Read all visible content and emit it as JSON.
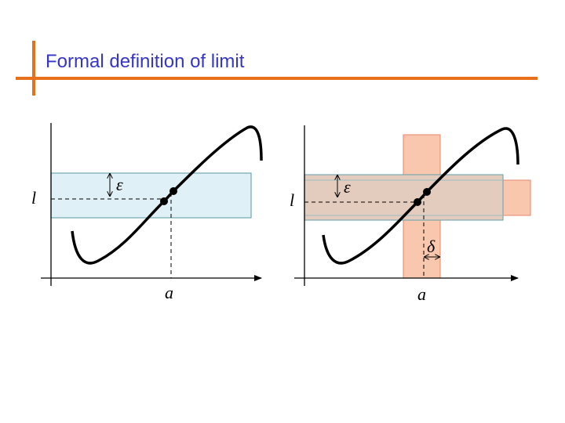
{
  "title": "Formal definition of limit",
  "diagrams": [
    {
      "y_label": "l",
      "band_label": "ε",
      "x_label": "a"
    },
    {
      "y_label": "l",
      "band_label": "ε",
      "x_label": "a",
      "delta_label": "δ"
    }
  ]
}
